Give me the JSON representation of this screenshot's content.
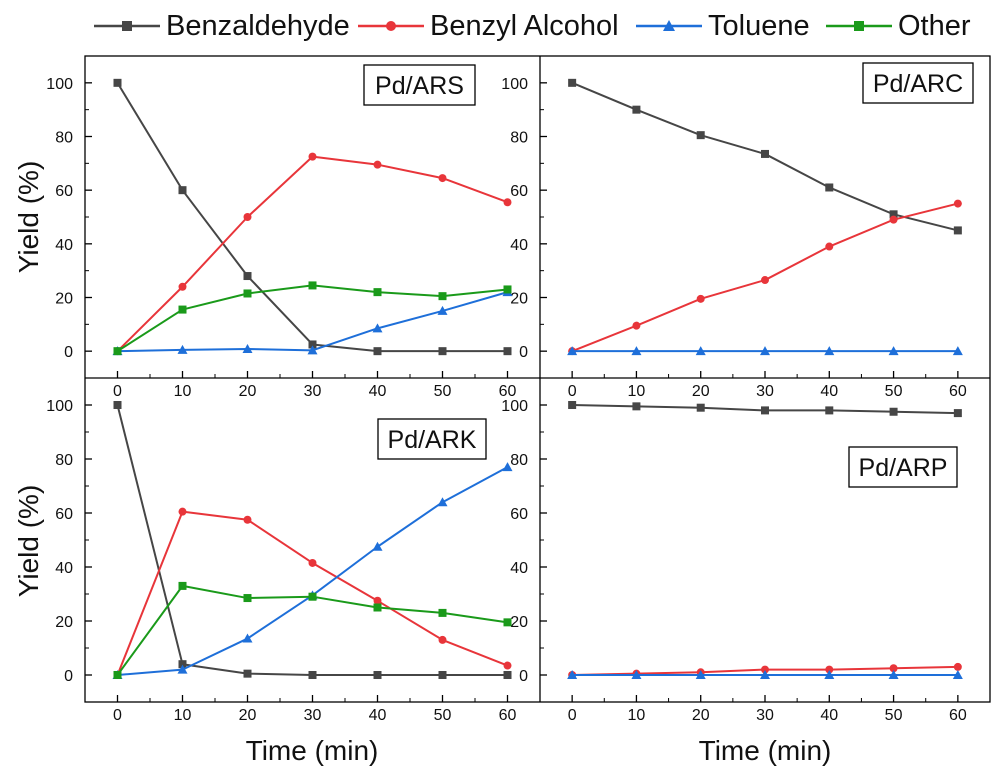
{
  "chart_data": {
    "type": "line",
    "x_label": "Time (min)",
    "y_label": "Yield (%)",
    "x_ticks": [
      0,
      10,
      20,
      30,
      40,
      50,
      60
    ],
    "y_ticks": [
      0,
      20,
      40,
      60,
      80,
      100
    ],
    "xlim": [
      -5,
      65
    ],
    "ylim": [
      -10,
      110
    ],
    "legend_position": "top",
    "series_styles": [
      {
        "name": "Benzaldehyde",
        "color": "#464646",
        "marker": "square"
      },
      {
        "name": "Benzyl Alcohol",
        "color": "#e8353a",
        "marker": "circle"
      },
      {
        "name": "Toluene",
        "color": "#1e6fd9",
        "marker": "triangle"
      },
      {
        "name": "Other",
        "color": "#1a9a1a",
        "marker": "square"
      }
    ],
    "panels": [
      {
        "label": "Pd/ARS",
        "x": [
          0,
          10,
          20,
          30,
          40,
          50,
          60
        ],
        "series": [
          {
            "name": "Benzaldehyde",
            "values": [
              100,
              60,
              28,
              2.5,
              0,
              0,
              0
            ]
          },
          {
            "name": "Benzyl Alcohol",
            "values": [
              0,
              24,
              50,
              72.5,
              69.5,
              64.5,
              55.5
            ]
          },
          {
            "name": "Toluene",
            "values": [
              0,
              0.5,
              0.8,
              0.3,
              8.5,
              15,
              22
            ]
          },
          {
            "name": "Other",
            "values": [
              0,
              15.5,
              21.5,
              24.5,
              22,
              20.5,
              23
            ]
          }
        ]
      },
      {
        "label": "Pd/ARC",
        "x": [
          0,
          10,
          20,
          30,
          40,
          50,
          60
        ],
        "series": [
          {
            "name": "Benzaldehyde",
            "values": [
              100,
              90,
              80.5,
              73.5,
              61,
              51,
              45
            ]
          },
          {
            "name": "Benzyl Alcohol",
            "values": [
              0,
              9.5,
              19.5,
              26.5,
              39,
              49,
              55
            ]
          },
          {
            "name": "Toluene",
            "values": [
              0,
              0,
              0,
              0,
              0,
              0,
              0
            ]
          }
        ]
      },
      {
        "label": "Pd/ARK",
        "x": [
          0,
          10,
          20,
          30,
          40,
          50,
          60
        ],
        "series": [
          {
            "name": "Benzaldehyde",
            "values": [
              100,
              4,
              0.5,
              0,
              0,
              0,
              0
            ]
          },
          {
            "name": "Benzyl Alcohol",
            "values": [
              0,
              60.5,
              57.5,
              41.5,
              27.5,
              13,
              3.5
            ]
          },
          {
            "name": "Toluene",
            "values": [
              0,
              2,
              13.5,
              29.5,
              47.5,
              64,
              77
            ]
          },
          {
            "name": "Other",
            "values": [
              0,
              33,
              28.5,
              29,
              25,
              23,
              19.5
            ]
          }
        ]
      },
      {
        "label": "Pd/ARP",
        "x": [
          0,
          10,
          20,
          30,
          40,
          50,
          60
        ],
        "series": [
          {
            "name": "Benzaldehyde",
            "values": [
              100,
              99.5,
              99,
              98,
              98,
              97.5,
              97
            ]
          },
          {
            "name": "Benzyl Alcohol",
            "values": [
              0,
              0.5,
              1,
              2,
              2,
              2.5,
              3
            ]
          },
          {
            "name": "Toluene",
            "values": [
              0,
              0,
              0,
              0,
              0,
              0,
              0
            ]
          }
        ]
      }
    ]
  }
}
